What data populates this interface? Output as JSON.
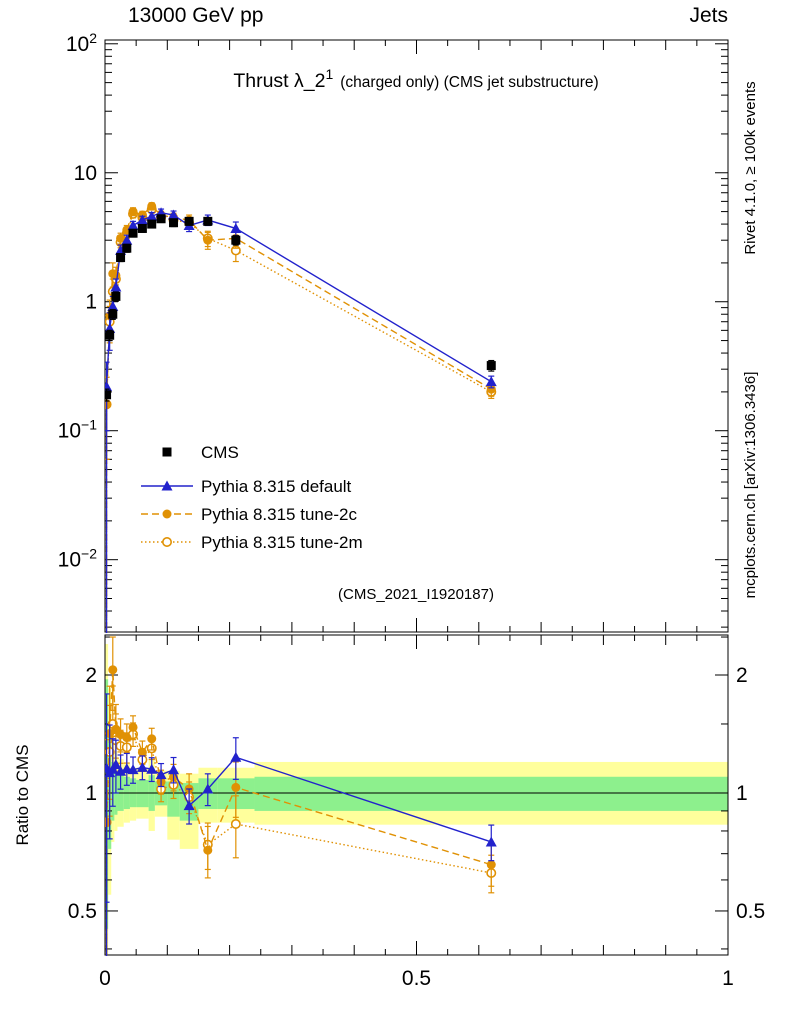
{
  "header": {
    "left": "13000 GeV pp",
    "right": "Jets"
  },
  "title": {
    "prefix": "Thrust λ_2",
    "sup": "1",
    "suffix": "(charged only) (CMS jet substructure)"
  },
  "watermark": "(CMS_2021_I1920187)",
  "side_notes": {
    "top_right": "Rivet 4.1.0, ≥ 100k events",
    "bottom_right": "mcplots.cern.ch [arXiv:1306.3436]"
  },
  "ratio_axis_label": "Ratio to CMS",
  "colors": {
    "cms": "#000000",
    "pythia_default": "#2222cc",
    "pythia_tune": "#e09104",
    "band_yellow": "#ffff9c",
    "band_green": "#8df08d",
    "gray_text": "#8c8c8c",
    "watermark_gray": "#b0b0b0"
  },
  "chart_data": {
    "type": "line",
    "title": "Thrust λ_2^1 (charged only) (CMS jet substructure)",
    "xlabel": "",
    "ylabel": "",
    "x_axis": {
      "range": [
        0,
        1
      ],
      "ticks": [
        {
          "value": 0,
          "label": "0"
        },
        {
          "value": 0.5,
          "label": "0.5"
        },
        {
          "value": 1,
          "label": "1"
        }
      ],
      "minor_step": 0.05
    },
    "y_axis_main": {
      "scale": "log",
      "range": [
        0.00275,
        107
      ],
      "ticks": [
        {
          "value": 100,
          "base": "10",
          "exp": "2"
        },
        {
          "value": 10,
          "label": "10"
        },
        {
          "value": 1,
          "label": "1"
        },
        {
          "value": 0.1,
          "base": "10",
          "exp": "−1"
        },
        {
          "value": 0.01,
          "base": "10",
          "exp": "−2"
        }
      ]
    },
    "y_axis_ratio": {
      "scale": "log",
      "range": [
        0.386,
        2.53
      ],
      "ticks": [
        {
          "value": 2,
          "label": "2"
        },
        {
          "value": 1,
          "label": "1"
        },
        {
          "value": 0.5,
          "label": "0.5"
        }
      ],
      "minor": [
        0.4,
        0.6,
        0.7,
        0.8,
        0.9,
        1.5,
        2.5
      ]
    },
    "x": [
      0.0025,
      0.0075,
      0.0125,
      0.0175,
      0.025,
      0.035,
      0.045,
      0.06,
      0.075,
      0.09,
      0.11,
      0.135,
      0.165,
      0.21,
      0.62
    ],
    "ratio_reference": "CMS",
    "series": [
      {
        "id": "cms",
        "name": "CMS",
        "marker": "square-filled",
        "color": "#000000",
        "line": "none",
        "rise_from_bottom": false,
        "y": [
          0.19,
          0.55,
          0.8,
          1.1,
          2.2,
          2.6,
          3.4,
          3.7,
          4.0,
          4.4,
          4.1,
          4.2,
          4.2,
          3.0,
          0.32
        ],
        "yerr": [
          0.02,
          0.05,
          0.07,
          0.09,
          0.15,
          0.18,
          0.22,
          0.24,
          0.26,
          0.28,
          0.27,
          0.27,
          0.27,
          0.25,
          0.03
        ]
      },
      {
        "id": "pythia-default",
        "name": "Pythia 8.315 default",
        "marker": "triangle-filled",
        "color": "#2222cc",
        "line": "solid",
        "rise_from_bottom": true,
        "y": [
          0.22,
          0.62,
          0.92,
          1.3,
          2.5,
          3.0,
          3.9,
          4.3,
          4.6,
          4.9,
          4.7,
          3.9,
          4.3,
          3.7,
          0.24
        ],
        "yerr": [
          0.12,
          0.2,
          0.18,
          0.2,
          0.25,
          0.28,
          0.3,
          0.3,
          0.32,
          0.33,
          0.35,
          0.4,
          0.4,
          0.45,
          0.025
        ]
      },
      {
        "id": "pythia-2c",
        "name": "Pythia 8.315 tune-2c",
        "marker": "circle-filled",
        "color": "#e09104",
        "line": "dashed",
        "rise_from_bottom": true,
        "y": [
          0.16,
          0.78,
          1.65,
          1.6,
          3.1,
          3.6,
          5.0,
          4.7,
          5.5,
          4.7,
          4.5,
          4.3,
          3.0,
          3.1,
          0.21
        ],
        "yerr": [
          0.1,
          0.25,
          0.35,
          0.25,
          0.3,
          0.3,
          0.35,
          0.32,
          0.35,
          0.33,
          0.35,
          0.4,
          0.45,
          0.5,
          0.025
        ]
      },
      {
        "id": "pythia-2m",
        "name": "Pythia 8.315 tune-2m",
        "marker": "circle-open",
        "color": "#e09104",
        "line": "dotted",
        "rise_from_bottom": true,
        "y": [
          0.16,
          0.7,
          1.2,
          1.5,
          2.9,
          3.4,
          4.8,
          4.5,
          5.2,
          4.5,
          4.3,
          4.1,
          3.1,
          2.5,
          0.2
        ],
        "yerr": [
          0.1,
          0.22,
          0.3,
          0.25,
          0.28,
          0.3,
          0.33,
          0.3,
          0.33,
          0.32,
          0.33,
          0.38,
          0.42,
          0.45,
          0.022
        ]
      }
    ],
    "ratio_bands": [
      {
        "name": "yellow",
        "color": "#ffff9c",
        "rects": [
          [
            0,
            0.005,
            0.3,
            2.4
          ],
          [
            0.005,
            0.01,
            0.55,
            1.85
          ],
          [
            0.01,
            0.015,
            0.75,
            1.4
          ],
          [
            0.015,
            0.02,
            0.8,
            1.28
          ],
          [
            0.02,
            0.03,
            0.82,
            1.22
          ],
          [
            0.03,
            0.04,
            0.84,
            1.19
          ],
          [
            0.04,
            0.05,
            0.85,
            1.16
          ],
          [
            0.05,
            0.07,
            0.86,
            1.16
          ],
          [
            0.07,
            0.08,
            0.8,
            1.22
          ],
          [
            0.08,
            0.1,
            0.87,
            1.14
          ],
          [
            0.1,
            0.12,
            0.76,
            1.14
          ],
          [
            0.12,
            0.15,
            0.72,
            1.12
          ],
          [
            0.15,
            0.18,
            0.84,
            1.16
          ],
          [
            0.18,
            0.24,
            0.84,
            1.16
          ],
          [
            0.24,
            1.0,
            0.83,
            1.2
          ]
        ]
      },
      {
        "name": "green",
        "color": "#8df08d",
        "rects": [
          [
            0,
            0.005,
            0.45,
            1.95
          ],
          [
            0.005,
            0.01,
            0.72,
            1.42
          ],
          [
            0.01,
            0.015,
            0.85,
            1.2
          ],
          [
            0.015,
            0.02,
            0.88,
            1.13
          ],
          [
            0.02,
            0.03,
            0.9,
            1.11
          ],
          [
            0.03,
            0.04,
            0.91,
            1.1
          ],
          [
            0.04,
            0.05,
            0.92,
            1.09
          ],
          [
            0.05,
            0.07,
            0.92,
            1.08
          ],
          [
            0.07,
            0.08,
            0.9,
            1.11
          ],
          [
            0.08,
            0.1,
            0.93,
            1.07
          ],
          [
            0.1,
            0.12,
            0.87,
            1.07
          ],
          [
            0.12,
            0.15,
            0.85,
            1.06
          ],
          [
            0.15,
            0.18,
            0.91,
            1.09
          ],
          [
            0.18,
            0.24,
            0.91,
            1.09
          ],
          [
            0.24,
            1.0,
            0.9,
            1.1
          ]
        ]
      }
    ]
  }
}
